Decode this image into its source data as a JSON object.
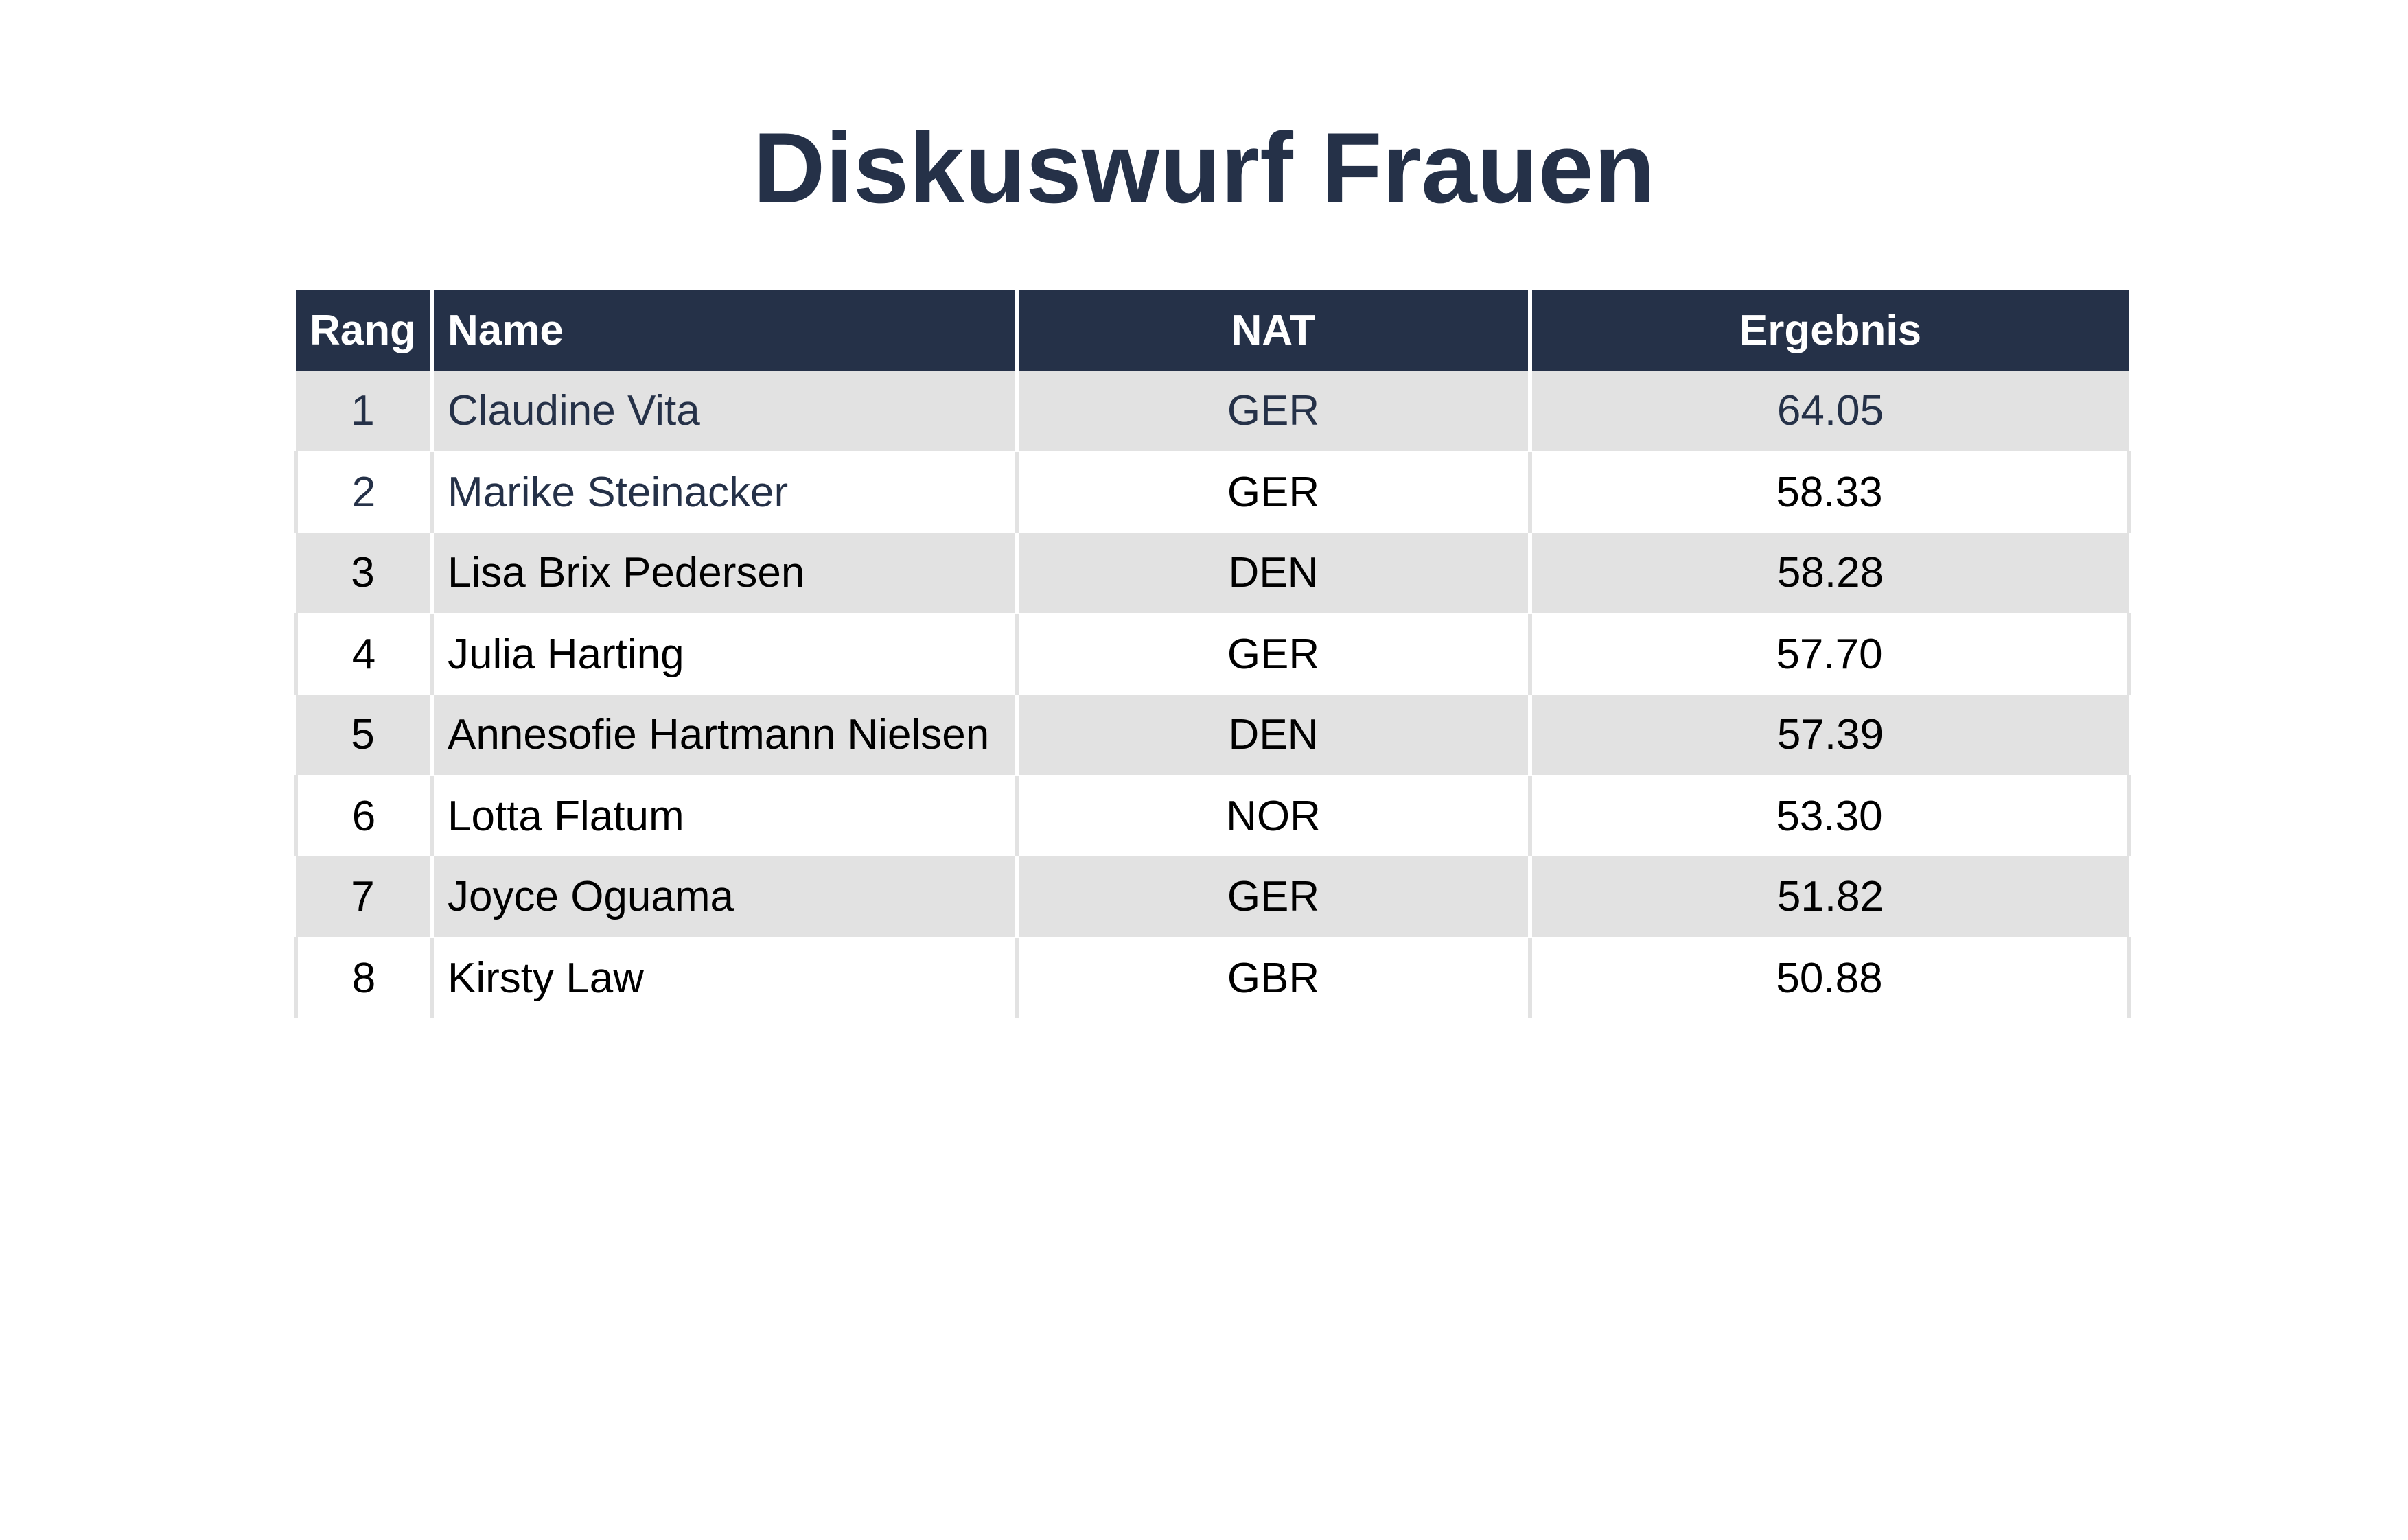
{
  "title": "Diskuswurf Frauen",
  "table": {
    "headers": {
      "rank": "Rang",
      "name": "Name",
      "nat": "NAT",
      "result": "Ergebnis"
    },
    "rows": [
      {
        "rank": "1",
        "name": "Claudine Vita",
        "nat": "GER",
        "result": "64.05"
      },
      {
        "rank": "2",
        "name": "Marike Steinacker",
        "nat": "GER",
        "result": "58.33"
      },
      {
        "rank": "3",
        "name": "Lisa Brix Pedersen",
        "nat": "DEN",
        "result": "58.28"
      },
      {
        "rank": "4",
        "name": "Julia Harting",
        "nat": "GER",
        "result": "57.70"
      },
      {
        "rank": "5",
        "name": "Annesofie Hartmann Nielsen",
        "nat": "DEN",
        "result": "57.39"
      },
      {
        "rank": "6",
        "name": "Lotta Flatum",
        "nat": "NOR",
        "result": "53.30"
      },
      {
        "rank": "7",
        "name": "Joyce Oguama",
        "nat": "GER",
        "result": "51.82"
      },
      {
        "rank": "8",
        "name": "Kirsty Law",
        "nat": "GBR",
        "result": "50.88"
      }
    ]
  },
  "colors": {
    "header_background": "#253148",
    "header_text": "#ffffff",
    "row_stripe": "#e2e2e2",
    "highlight_text": "#253148"
  }
}
